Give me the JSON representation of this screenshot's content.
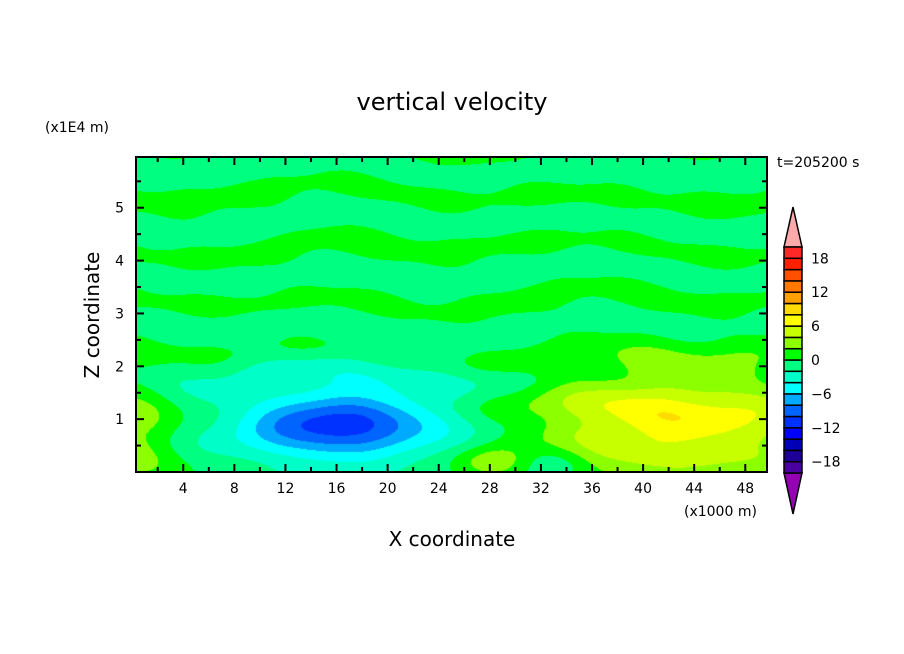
{
  "chart_data": {
    "type": "heatmap",
    "subtype": "filled-contour",
    "title": "vertical velocity",
    "xlabel": "X coordinate",
    "ylabel": "Z coordinate",
    "x_unit": "(x1000 m)",
    "y_unit": "(x1E4 m)",
    "time_label": "t=205200 s",
    "xlim": [
      0.3,
      49.7
    ],
    "ylim": [
      0,
      5.96
    ],
    "xticks": [
      4,
      8,
      12,
      16,
      20,
      24,
      28,
      32,
      36,
      40,
      44,
      48
    ],
    "yticks": [
      1,
      2,
      3,
      4,
      5
    ],
    "colorbar": {
      "levels": [
        -20,
        -18,
        -16,
        -14,
        -12,
        -10,
        -8,
        -6,
        -4,
        -2,
        0,
        2,
        4,
        6,
        8,
        10,
        12,
        14,
        16,
        18,
        20
      ],
      "tick_labels": [
        "18",
        "12",
        "6",
        "0",
        "-6",
        "-12",
        "-18"
      ],
      "tick_values": [
        18,
        12,
        6,
        0,
        -6,
        -12,
        -18
      ],
      "colors": [
        "#4b00a0",
        "#1e0096",
        "#0000b4",
        "#0000ff",
        "#0032ff",
        "#0064ff",
        "#00aaff",
        "#00ffff",
        "#00ffc8",
        "#00ff80",
        "#00ff00",
        "#8cff00",
        "#c8ff00",
        "#ffff00",
        "#ffdc00",
        "#ffa000",
        "#ff7800",
        "#ff5000",
        "#ff2000",
        "#ff2828"
      ],
      "over_color": "#ffaaaa",
      "under_color": "#9600b4"
    },
    "features": [
      {
        "kind": "updraft",
        "x": 42,
        "z": 0.95,
        "peak": 7.5,
        "sx": 8.5,
        "sz": 0.75
      },
      {
        "kind": "downdraft",
        "x": 16,
        "z": 0.85,
        "peak": -7.2,
        "sx": 5,
        "sz": 0.45
      },
      {
        "kind": "downdraft",
        "x": 18,
        "z": 1.1,
        "peak": -3.5,
        "sx": 9,
        "sz": 0.8
      },
      {
        "kind": "updraft",
        "x": 0,
        "z": 0.7,
        "peak": 3.6,
        "sx": 2.5,
        "sz": 0.7
      },
      {
        "kind": "updraft",
        "x": 28,
        "z": 0.2,
        "peak": 3.0,
        "sx": 2.0,
        "sz": 0.2
      },
      {
        "kind": "downdraft",
        "x": 33,
        "z": 0.2,
        "peak": -2.8,
        "sx": 2.0,
        "sz": 0.25
      }
    ]
  }
}
